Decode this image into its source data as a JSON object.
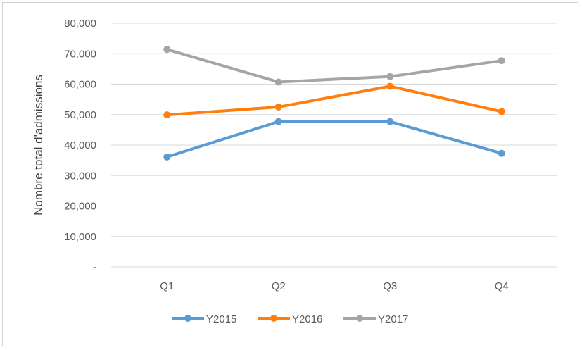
{
  "chart_data": {
    "type": "line",
    "title": "",
    "xlabel": "",
    "ylabel": "Nombre total d'admissions",
    "categories": [
      "Q1",
      "Q2",
      "Q3",
      "Q4"
    ],
    "ylim": [
      0,
      80000
    ],
    "yticks": [
      0,
      10000,
      20000,
      30000,
      40000,
      50000,
      60000,
      70000,
      80000
    ],
    "ytick_labels": [
      "-",
      "10,000",
      "20,000",
      "30,000",
      "40,000",
      "50,000",
      "60,000",
      "70,000",
      "80,000"
    ],
    "grid": true,
    "legend_position": "bottom",
    "series": [
      {
        "name": "Y2015",
        "color": "#5b9bd5",
        "values": [
          36100,
          47700,
          47700,
          37300
        ]
      },
      {
        "name": "Y2016",
        "color": "#ff7f0e",
        "values": [
          49900,
          52500,
          59300,
          51000
        ]
      },
      {
        "name": "Y2017",
        "color": "#a5a5a5",
        "values": [
          71400,
          60700,
          62500,
          67700
        ]
      }
    ]
  }
}
